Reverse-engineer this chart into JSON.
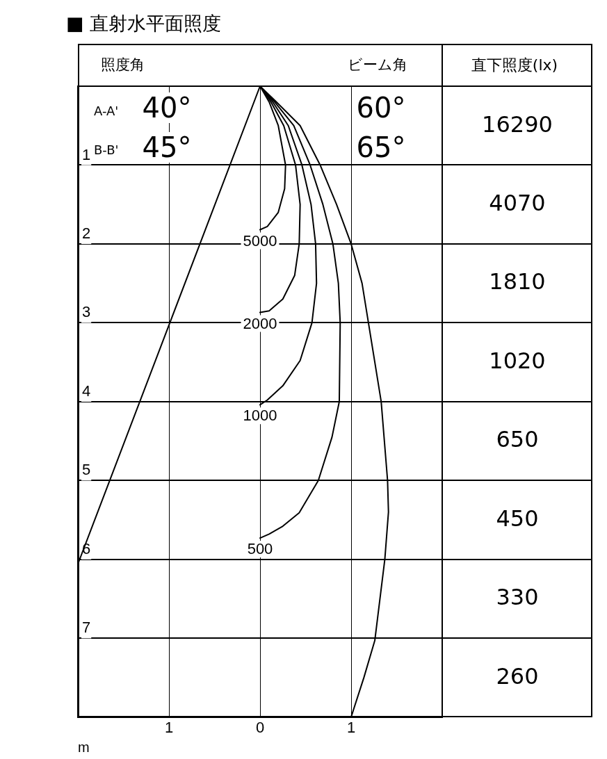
{
  "chart_data": {
    "type": "line",
    "title": "■ 直射水平面照度",
    "xlabel": "m",
    "xlim": [
      -2,
      2
    ],
    "xticks": [
      {
        "value": -1,
        "label": "1"
      },
      0,
      1
    ],
    "ylim": [
      8,
      0
    ],
    "yticks": [
      1,
      2,
      3,
      4,
      5,
      6,
      7
    ],
    "grid": true,
    "legend": false,
    "marker": "none",
    "line_style": "solid",
    "series": [
      {
        "name": "5000",
        "color": "#000000",
        "x": [
          0,
          0.1,
          0.2,
          0.28,
          0.27,
          0.2,
          0.08,
          0
        ],
        "values": [
          0,
          0.2,
          0.5,
          1.0,
          1.3,
          1.6,
          1.78,
          1.82
        ]
      },
      {
        "name": "2000",
        "color": "#000000",
        "x": [
          0,
          0.12,
          0.26,
          0.39,
          0.44,
          0.43,
          0.38,
          0.25,
          0.1,
          0
        ],
        "values": [
          0,
          0.2,
          0.5,
          1.0,
          1.5,
          2.0,
          2.4,
          2.7,
          2.85,
          2.87
        ]
      },
      {
        "name": "1000",
        "color": "#000000",
        "x": [
          0,
          0.14,
          0.31,
          0.46,
          0.56,
          0.61,
          0.62,
          0.57,
          0.44,
          0.25,
          0.08,
          0
        ],
        "values": [
          0,
          0.2,
          0.5,
          1.0,
          1.5,
          2.0,
          2.5,
          3.0,
          3.48,
          3.8,
          3.98,
          4.04
        ]
      },
      {
        "name": "500",
        "color": "#000000",
        "x": [
          0,
          0.16,
          0.37,
          0.55,
          0.69,
          0.8,
          0.86,
          0.88,
          0.87,
          0.79,
          0.64,
          0.43,
          0.25,
          0.1,
          0
        ],
        "values": [
          0,
          0.2,
          0.5,
          1.0,
          1.5,
          2.0,
          2.5,
          3.0,
          4.0,
          4.45,
          5.0,
          5.41,
          5.58,
          5.68,
          5.73
        ]
      },
      {
        "color": "#000000",
        "x": [
          0,
          0.18,
          0.44,
          0.66,
          0.84,
          1.0,
          1.12,
          1.19,
          1.33,
          1.4,
          1.41,
          1.37,
          1.26,
          1.14,
          1.0
        ],
        "values": [
          0,
          0.2,
          0.5,
          1.0,
          1.5,
          2.0,
          2.5,
          3.0,
          4.0,
          5.0,
          5.4,
          6.0,
          7.03,
          7.5,
          8.0
        ]
      },
      {
        "color": "#000000",
        "x": [
          0,
          -2
        ],
        "values": [
          0,
          6.06
        ]
      }
    ],
    "annotations": [
      "照度角",
      "A-A'",
      "40°",
      "B-B'",
      "45°",
      "ビーム角",
      "60°",
      "65°",
      "直下照度(lx)",
      "16290",
      "4070",
      "1810",
      "1020",
      "650",
      "450",
      "330",
      "260"
    ]
  }
}
